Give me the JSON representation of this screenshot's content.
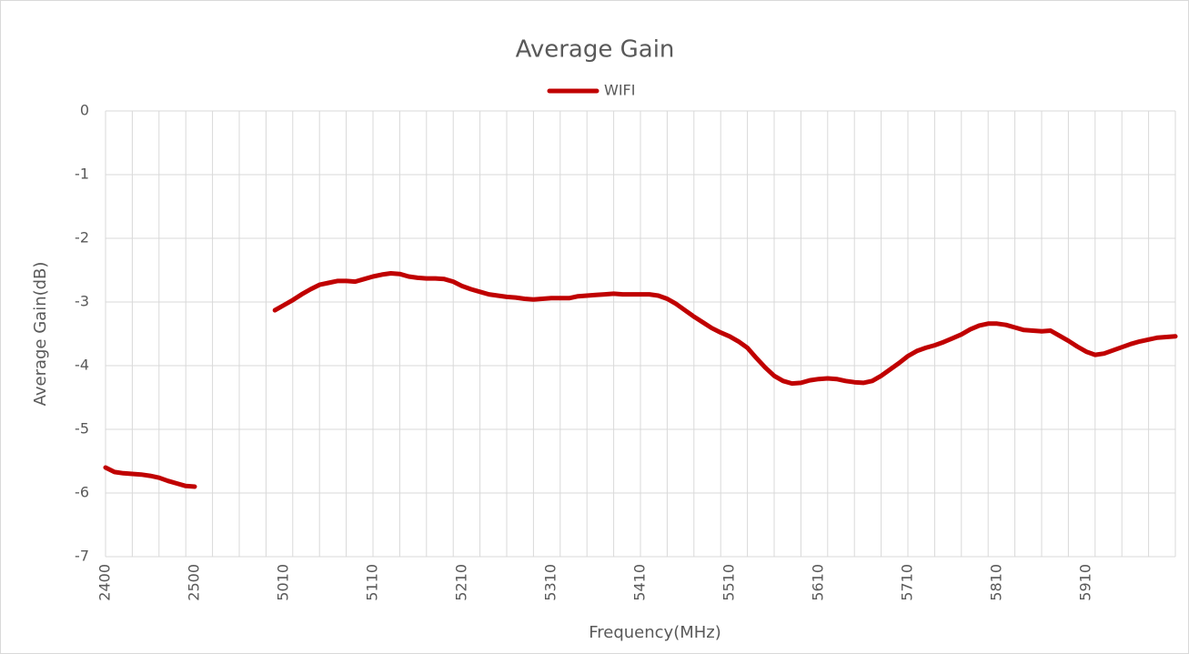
{
  "chart_data": {
    "type": "line",
    "title": "Average Gain",
    "x_label": "Frequency(MHz)",
    "y_label": "Average Gain(dB)",
    "categories": [
      "2400",
      null,
      null,
      null,
      null,
      null,
      null,
      null,
      null,
      null,
      "2500",
      null,
      null,
      null,
      null,
      null,
      null,
      null,
      null,
      null,
      "5010",
      null,
      null,
      null,
      null,
      null,
      null,
      null,
      null,
      null,
      "5110",
      null,
      null,
      null,
      null,
      null,
      null,
      null,
      null,
      null,
      "5210",
      null,
      null,
      null,
      null,
      null,
      null,
      null,
      null,
      null,
      "5310",
      null,
      null,
      null,
      null,
      null,
      null,
      null,
      null,
      null,
      "5410",
      null,
      null,
      null,
      null,
      null,
      null,
      null,
      null,
      null,
      "5510",
      null,
      null,
      null,
      null,
      null,
      null,
      null,
      null,
      null,
      "5610",
      null,
      null,
      null,
      null,
      null,
      null,
      null,
      null,
      null,
      "5710",
      null,
      null,
      null,
      null,
      null,
      null,
      null,
      null,
      null,
      "5810",
      null,
      null,
      null,
      null,
      null,
      null,
      null,
      null,
      null,
      "5910",
      null,
      null,
      null,
      null,
      null,
      null,
      null,
      null,
      null,
      null
    ],
    "series": [
      {
        "name": "WIFI",
        "color": "#c00000",
        "values": [
          -5.6,
          -5.67,
          -5.69,
          -5.7,
          -5.71,
          -5.73,
          -5.76,
          -5.81,
          -5.85,
          -5.89,
          -5.9,
          null,
          null,
          null,
          null,
          null,
          null,
          null,
          null,
          -3.13,
          -3.05,
          -2.97,
          -2.88,
          -2.8,
          -2.73,
          -2.7,
          -2.67,
          -2.67,
          -2.68,
          -2.64,
          -2.6,
          -2.57,
          -2.55,
          -2.56,
          -2.6,
          -2.62,
          -2.63,
          -2.63,
          -2.64,
          -2.68,
          -2.75,
          -2.8,
          -2.84,
          -2.88,
          -2.9,
          -2.92,
          -2.93,
          -2.95,
          -2.96,
          -2.95,
          -2.94,
          -2.94,
          -2.94,
          -2.91,
          -2.9,
          -2.89,
          -2.88,
          -2.87,
          -2.88,
          -2.88,
          -2.88,
          -2.88,
          -2.9,
          -2.95,
          -3.03,
          -3.13,
          -3.23,
          -3.32,
          -3.41,
          -3.48,
          -3.54,
          -3.62,
          -3.72,
          -3.88,
          -4.03,
          -4.16,
          -4.24,
          -4.28,
          -4.27,
          -4.23,
          -4.21,
          -4.2,
          -4.21,
          -4.24,
          -4.26,
          -4.27,
          -4.24,
          -4.16,
          -4.06,
          -3.96,
          -3.85,
          -3.77,
          -3.72,
          -3.68,
          -3.63,
          -3.57,
          -3.51,
          -3.43,
          -3.37,
          -3.34,
          -3.34,
          -3.36,
          -3.4,
          -3.44,
          -3.45,
          -3.46,
          -3.45,
          -3.53,
          -3.61,
          -3.7,
          -3.78,
          -3.83,
          -3.81,
          -3.76,
          -3.71,
          -3.66,
          -3.62,
          -3.59,
          -3.56,
          -3.55,
          -3.54
        ]
      }
    ],
    "ylim": [
      -7,
      0
    ],
    "yticks": [
      0,
      -1,
      -2,
      -3,
      -4,
      -5,
      -6,
      -7
    ],
    "grid": true,
    "legend": "top"
  }
}
